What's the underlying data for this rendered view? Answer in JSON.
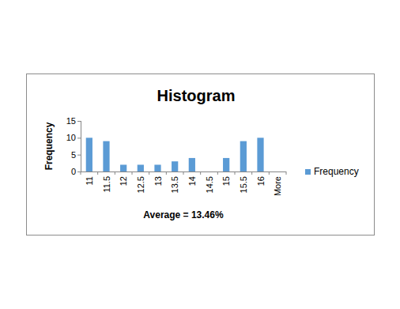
{
  "chart_data": {
    "type": "bar",
    "title": "Histogram",
    "x_label": "Average = 13.46%",
    "y_label": "Frequency",
    "categories": [
      "11",
      "11.5",
      "12",
      "12.5",
      "13",
      "13.5",
      "14",
      "14.5",
      "15",
      "15.5",
      "16",
      "More"
    ],
    "series": [
      {
        "name": "Frequency",
        "color": "#5b9bd5",
        "values": [
          10,
          9,
          2,
          2,
          2,
          3,
          4,
          0,
          4,
          9,
          10,
          0
        ]
      }
    ],
    "ylim": [
      0,
      15
    ],
    "yticks": [
      0,
      5,
      10,
      15
    ],
    "grid": false,
    "legend": "right"
  }
}
